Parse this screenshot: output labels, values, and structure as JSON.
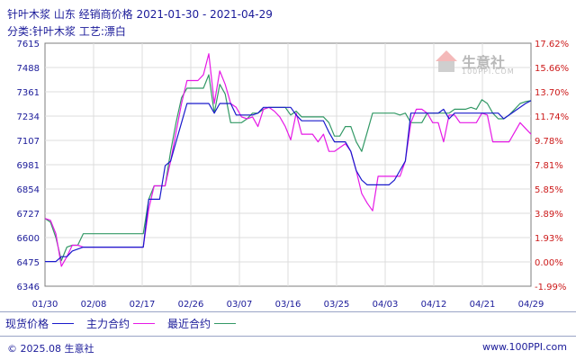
{
  "header": {
    "title": "针叶木浆 山东 经销商价格 2021-01-30 - 2021-04-29",
    "subtitle": "分类:针叶木浆 工艺:漂白"
  },
  "watermark": {
    "brand": "生意社",
    "url": "100PPI.COM"
  },
  "legend": {
    "label": "现货价格",
    "items": [
      {
        "name": "主力合约",
        "color": "#e619e6"
      },
      {
        "name": "最近合约",
        "color": "#339966"
      }
    ]
  },
  "footer": {
    "copyright": "© 2025.08 生意社",
    "site": "www.100PPI.com"
  },
  "chart_data": {
    "type": "line",
    "x_tick_labels": [
      "01/30",
      "02/08",
      "02/17",
      "02/26",
      "03/07",
      "03/16",
      "03/25",
      "04/03",
      "04/12",
      "04/21",
      "04/29"
    ],
    "y_left_ticks": [
      6346,
      6475,
      6600,
      6727,
      6854,
      6981,
      7107,
      7234,
      7361,
      7488,
      7615
    ],
    "y_right_ticks": [
      "-1.99%",
      "0.00%",
      "1.93%",
      "3.89%",
      "5.85%",
      "7.81%",
      "9.78%",
      "11.74%",
      "13.70%",
      "15.66%",
      "17.62%"
    ],
    "ylim": [
      6346,
      7615
    ],
    "x_range_days": [
      0,
      89
    ],
    "grid": true,
    "series": [
      {
        "name": "现货价格",
        "color": "#1a1acc",
        "points": [
          [
            0,
            6475
          ],
          [
            2,
            6475
          ],
          [
            3,
            6500
          ],
          [
            4,
            6500
          ],
          [
            5,
            6530
          ],
          [
            7,
            6550
          ],
          [
            9,
            6550
          ],
          [
            11,
            6550
          ],
          [
            13,
            6550
          ],
          [
            15,
            6550
          ],
          [
            16,
            6550
          ],
          [
            18,
            6550
          ],
          [
            19,
            6800
          ],
          [
            20,
            6800
          ],
          [
            21,
            6800
          ],
          [
            22,
            6975
          ],
          [
            23,
            7000
          ],
          [
            24,
            7100
          ],
          [
            25,
            7200
          ],
          [
            26,
            7300
          ],
          [
            27,
            7300
          ],
          [
            28,
            7300
          ],
          [
            29,
            7300
          ],
          [
            30,
            7300
          ],
          [
            31,
            7250
          ],
          [
            32,
            7300
          ],
          [
            33,
            7300
          ],
          [
            34,
            7300
          ],
          [
            35,
            7240
          ],
          [
            36,
            7240
          ],
          [
            37,
            7240
          ],
          [
            38,
            7240
          ],
          [
            39,
            7250
          ],
          [
            40,
            7280
          ],
          [
            41,
            7280
          ],
          [
            42,
            7280
          ],
          [
            43,
            7280
          ],
          [
            44,
            7280
          ],
          [
            45,
            7280
          ],
          [
            46,
            7240
          ],
          [
            47,
            7210
          ],
          [
            48,
            7210
          ],
          [
            49,
            7210
          ],
          [
            50,
            7210
          ],
          [
            51,
            7210
          ],
          [
            52,
            7150
          ],
          [
            53,
            7100
          ],
          [
            54,
            7100
          ],
          [
            55,
            7100
          ],
          [
            56,
            7050
          ],
          [
            57,
            6950
          ],
          [
            58,
            6900
          ],
          [
            59,
            6875
          ],
          [
            60,
            6875
          ],
          [
            61,
            6875
          ],
          [
            62,
            6875
          ],
          [
            63,
            6875
          ],
          [
            64,
            6900
          ],
          [
            65,
            6950
          ],
          [
            66,
            7000
          ],
          [
            67,
            7250
          ],
          [
            68,
            7250
          ],
          [
            69,
            7250
          ],
          [
            70,
            7250
          ],
          [
            71,
            7250
          ],
          [
            72,
            7250
          ],
          [
            73,
            7270
          ],
          [
            74,
            7220
          ],
          [
            75,
            7250
          ],
          [
            76,
            7250
          ],
          [
            77,
            7250
          ],
          [
            78,
            7250
          ],
          [
            79,
            7250
          ],
          [
            80,
            7250
          ],
          [
            81,
            7250
          ],
          [
            82,
            7250
          ],
          [
            83,
            7250
          ],
          [
            84,
            7220
          ],
          [
            85,
            7240
          ],
          [
            86,
            7260
          ],
          [
            87,
            7280
          ],
          [
            88,
            7300
          ],
          [
            89,
            7315
          ]
        ]
      },
      {
        "name": "主力合约",
        "color": "#e619e6",
        "points": [
          [
            0,
            6700
          ],
          [
            1,
            6690
          ],
          [
            2,
            6620
          ],
          [
            3,
            6450
          ],
          [
            4,
            6500
          ],
          [
            5,
            6560
          ],
          [
            6,
            6560
          ],
          [
            7,
            6550
          ],
          [
            8,
            6550
          ],
          [
            9,
            6550
          ],
          [
            10,
            6550
          ],
          [
            11,
            6550
          ],
          [
            12,
            6550
          ],
          [
            13,
            6550
          ],
          [
            14,
            6550
          ],
          [
            15,
            6550
          ],
          [
            16,
            6550
          ],
          [
            17,
            6550
          ],
          [
            18,
            6550
          ],
          [
            19,
            6750
          ],
          [
            20,
            6870
          ],
          [
            21,
            6870
          ],
          [
            22,
            6870
          ],
          [
            23,
            7000
          ],
          [
            24,
            7150
          ],
          [
            25,
            7300
          ],
          [
            26,
            7420
          ],
          [
            27,
            7420
          ],
          [
            28,
            7420
          ],
          [
            29,
            7450
          ],
          [
            30,
            7560
          ],
          [
            31,
            7300
          ],
          [
            32,
            7470
          ],
          [
            33,
            7400
          ],
          [
            34,
            7300
          ],
          [
            35,
            7280
          ],
          [
            36,
            7230
          ],
          [
            37,
            7220
          ],
          [
            38,
            7230
          ],
          [
            39,
            7180
          ],
          [
            40,
            7270
          ],
          [
            41,
            7280
          ],
          [
            42,
            7260
          ],
          [
            43,
            7230
          ],
          [
            44,
            7180
          ],
          [
            45,
            7110
          ],
          [
            46,
            7250
          ],
          [
            47,
            7140
          ],
          [
            48,
            7140
          ],
          [
            49,
            7140
          ],
          [
            50,
            7100
          ],
          [
            51,
            7140
          ],
          [
            52,
            7050
          ],
          [
            53,
            7050
          ],
          [
            54,
            7070
          ],
          [
            55,
            7090
          ],
          [
            56,
            7050
          ],
          [
            57,
            6950
          ],
          [
            58,
            6830
          ],
          [
            59,
            6780
          ],
          [
            60,
            6740
          ],
          [
            61,
            6920
          ],
          [
            62,
            6920
          ],
          [
            63,
            6920
          ],
          [
            64,
            6920
          ],
          [
            65,
            6920
          ],
          [
            66,
            7000
          ],
          [
            67,
            7200
          ],
          [
            68,
            7270
          ],
          [
            69,
            7270
          ],
          [
            70,
            7250
          ],
          [
            71,
            7200
          ],
          [
            72,
            7200
          ],
          [
            73,
            7100
          ],
          [
            74,
            7240
          ],
          [
            75,
            7240
          ],
          [
            76,
            7200
          ],
          [
            77,
            7200
          ],
          [
            78,
            7200
          ],
          [
            79,
            7200
          ],
          [
            80,
            7250
          ],
          [
            81,
            7240
          ],
          [
            82,
            7100
          ],
          [
            83,
            7100
          ],
          [
            84,
            7100
          ],
          [
            85,
            7100
          ],
          [
            86,
            7150
          ],
          [
            87,
            7200
          ],
          [
            88,
            7170
          ],
          [
            89,
            7140
          ]
        ]
      },
      {
        "name": "最近合约",
        "color": "#339966",
        "points": [
          [
            0,
            6700
          ],
          [
            1,
            6680
          ],
          [
            2,
            6600
          ],
          [
            3,
            6480
          ],
          [
            4,
            6550
          ],
          [
            5,
            6560
          ],
          [
            6,
            6560
          ],
          [
            7,
            6620
          ],
          [
            8,
            6620
          ],
          [
            9,
            6620
          ],
          [
            10,
            6620
          ],
          [
            11,
            6620
          ],
          [
            12,
            6620
          ],
          [
            13,
            6620
          ],
          [
            14,
            6620
          ],
          [
            15,
            6620
          ],
          [
            16,
            6620
          ],
          [
            17,
            6620
          ],
          [
            18,
            6620
          ],
          [
            19,
            6800
          ],
          [
            20,
            6870
          ],
          [
            21,
            6870
          ],
          [
            22,
            6870
          ],
          [
            23,
            7050
          ],
          [
            24,
            7200
          ],
          [
            25,
            7330
          ],
          [
            26,
            7380
          ],
          [
            27,
            7380
          ],
          [
            28,
            7380
          ],
          [
            29,
            7380
          ],
          [
            30,
            7450
          ],
          [
            31,
            7250
          ],
          [
            32,
            7400
          ],
          [
            33,
            7350
          ],
          [
            34,
            7200
          ],
          [
            35,
            7200
          ],
          [
            36,
            7200
          ],
          [
            37,
            7220
          ],
          [
            38,
            7250
          ],
          [
            39,
            7250
          ],
          [
            40,
            7270
          ],
          [
            41,
            7280
          ],
          [
            42,
            7280
          ],
          [
            43,
            7280
          ],
          [
            44,
            7280
          ],
          [
            45,
            7240
          ],
          [
            46,
            7260
          ],
          [
            47,
            7230
          ],
          [
            48,
            7230
          ],
          [
            49,
            7230
          ],
          [
            50,
            7230
          ],
          [
            51,
            7230
          ],
          [
            52,
            7200
          ],
          [
            53,
            7130
          ],
          [
            54,
            7130
          ],
          [
            55,
            7180
          ],
          [
            56,
            7180
          ],
          [
            57,
            7100
          ],
          [
            58,
            7050
          ],
          [
            59,
            7150
          ],
          [
            60,
            7250
          ],
          [
            61,
            7250
          ],
          [
            62,
            7250
          ],
          [
            63,
            7250
          ],
          [
            64,
            7250
          ],
          [
            65,
            7240
          ],
          [
            66,
            7250
          ],
          [
            67,
            7200
          ],
          [
            68,
            7200
          ],
          [
            69,
            7200
          ],
          [
            70,
            7250
          ],
          [
            71,
            7250
          ],
          [
            72,
            7250
          ],
          [
            73,
            7250
          ],
          [
            74,
            7250
          ],
          [
            75,
            7270
          ],
          [
            76,
            7270
          ],
          [
            77,
            7270
          ],
          [
            78,
            7280
          ],
          [
            79,
            7270
          ],
          [
            80,
            7320
          ],
          [
            81,
            7300
          ],
          [
            82,
            7250
          ],
          [
            83,
            7220
          ],
          [
            84,
            7220
          ],
          [
            85,
            7240
          ],
          [
            86,
            7270
          ],
          [
            87,
            7300
          ],
          [
            88,
            7310
          ],
          [
            89,
            7315
          ]
        ]
      }
    ]
  }
}
